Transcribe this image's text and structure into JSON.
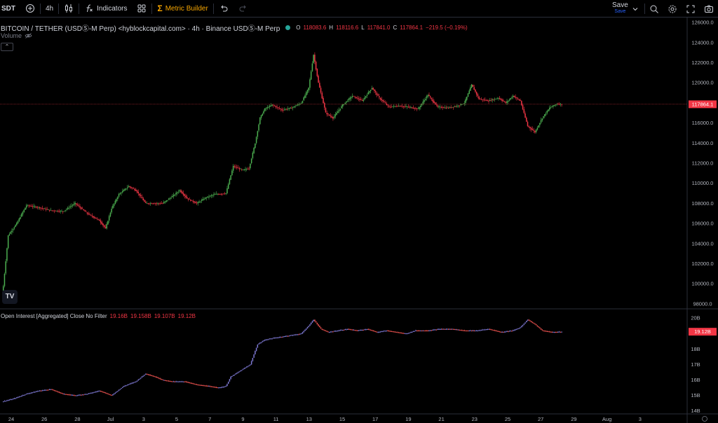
{
  "toolbar": {
    "symbol_short": "SDT",
    "interval": "4h",
    "indicators_label": "Indicators",
    "metric_builder_label": "Metric Builder",
    "save_label": "Save",
    "save_sub_label": "Save"
  },
  "legend": {
    "title": "BITCOIN / TETHER (USDⓈ-M Perp) <hyblockcapital.com> · 4h · Binance USDⓈ-M Perp",
    "o_key": "O",
    "o_val": "118083.6",
    "h_key": "H",
    "h_val": "118116.6",
    "l_key": "L",
    "l_val": "117841.0",
    "c_key": "C",
    "c_val": "117864.1",
    "change": "−219.5 (−0.19%)",
    "volume_label": "Volume",
    "collapse_glyph": "⌃"
  },
  "oi_legend": {
    "title": "Open Interest [Aggregated] Close No Filter",
    "v1": "19.16B",
    "v2": "19.158B",
    "v3": "19.107B",
    "v4": "19.12B"
  },
  "price_axis": {
    "ticks": [
      "126000.0",
      "124000.0",
      "122000.0",
      "120000.0",
      "118000.0",
      "116000.0",
      "114000.0",
      "112000.0",
      "110000.0",
      "108000.0",
      "106000.0",
      "104000.0",
      "102000.0",
      "100000.0",
      "98000.0"
    ],
    "current_label": "117864.1",
    "current_value": 117864.1
  },
  "oi_axis": {
    "ticks": [
      "20B",
      "19B",
      "18B",
      "17B",
      "16B",
      "15B",
      "14B"
    ],
    "current_label": "19.12B",
    "current_value": 19.12
  },
  "time_axis": {
    "labels": [
      "24",
      "26",
      "28",
      "Jul",
      "3",
      "5",
      "7",
      "9",
      "11",
      "13",
      "15",
      "17",
      "19",
      "21",
      "23",
      "25",
      "27",
      "29",
      "Aug",
      "3"
    ]
  },
  "colors": {
    "up": "#26a69a",
    "up_bright": "#4caf50",
    "down": "#f23645",
    "oi_up": "#7e79d4",
    "oi_down": "#ef5350",
    "price_line": "#f23645",
    "accent": "#f7a600"
  },
  "chart_data": {
    "type": "candlestick",
    "interval": "4h",
    "ylim": [
      97500,
      126500
    ],
    "price_key_points": [
      [
        0,
        98500
      ],
      [
        5,
        104800
      ],
      [
        12,
        106000
      ],
      [
        20,
        107800
      ],
      [
        30,
        107600
      ],
      [
        40,
        107300
      ],
      [
        50,
        107200
      ],
      [
        60,
        108000
      ],
      [
        70,
        107000
      ],
      [
        80,
        106300
      ],
      [
        85,
        105500
      ],
      [
        90,
        107500
      ],
      [
        96,
        108900
      ],
      [
        104,
        109700
      ],
      [
        110,
        109300
      ],
      [
        118,
        108000
      ],
      [
        125,
        108000
      ],
      [
        132,
        108000
      ],
      [
        140,
        108700
      ],
      [
        146,
        109300
      ],
      [
        152,
        108500
      ],
      [
        160,
        108000
      ],
      [
        168,
        108600
      ],
      [
        175,
        108900
      ],
      [
        184,
        109000
      ],
      [
        190,
        111700
      ],
      [
        198,
        111300
      ],
      [
        203,
        111500
      ],
      [
        208,
        114000
      ],
      [
        212,
        116500
      ],
      [
        216,
        117400
      ],
      [
        222,
        117800
      ],
      [
        230,
        117300
      ],
      [
        238,
        117500
      ],
      [
        246,
        118000
      ],
      [
        252,
        119500
      ],
      [
        256,
        122800
      ],
      [
        260,
        120000
      ],
      [
        266,
        117000
      ],
      [
        272,
        116500
      ],
      [
        280,
        117800
      ],
      [
        288,
        118700
      ],
      [
        296,
        118200
      ],
      [
        304,
        119500
      ],
      [
        310,
        118500
      ],
      [
        318,
        117600
      ],
      [
        326,
        117700
      ],
      [
        334,
        117600
      ],
      [
        342,
        117400
      ],
      [
        350,
        118800
      ],
      [
        358,
        117600
      ],
      [
        366,
        117500
      ],
      [
        374,
        117700
      ],
      [
        380,
        118000
      ],
      [
        386,
        119800
      ],
      [
        392,
        118400
      ],
      [
        400,
        118200
      ],
      [
        408,
        118500
      ],
      [
        414,
        118000
      ],
      [
        420,
        118700
      ],
      [
        426,
        118200
      ],
      [
        432,
        115700
      ],
      [
        438,
        115100
      ],
      [
        444,
        116500
      ],
      [
        450,
        117500
      ],
      [
        456,
        117900
      ],
      [
        460,
        117864
      ]
    ],
    "oi_ylim": [
      13.8,
      20.6
    ],
    "oi_key_points": [
      [
        0,
        14.6
      ],
      [
        10,
        14.8
      ],
      [
        20,
        15.1
      ],
      [
        30,
        15.3
      ],
      [
        40,
        15.4
      ],
      [
        50,
        15.1
      ],
      [
        60,
        15.0
      ],
      [
        70,
        15.1
      ],
      [
        80,
        15.3
      ],
      [
        90,
        15.0
      ],
      [
        100,
        15.6
      ],
      [
        110,
        15.9
      ],
      [
        118,
        16.4
      ],
      [
        126,
        16.2
      ],
      [
        132,
        16.0
      ],
      [
        140,
        15.9
      ],
      [
        150,
        15.9
      ],
      [
        160,
        15.7
      ],
      [
        170,
        15.6
      ],
      [
        178,
        15.5
      ],
      [
        184,
        15.6
      ],
      [
        188,
        16.2
      ],
      [
        196,
        16.6
      ],
      [
        204,
        17.0
      ],
      [
        210,
        18.3
      ],
      [
        216,
        18.6
      ],
      [
        222,
        18.7
      ],
      [
        230,
        18.8
      ],
      [
        238,
        18.9
      ],
      [
        246,
        19.0
      ],
      [
        252,
        19.5
      ],
      [
        256,
        19.9
      ],
      [
        262,
        19.3
      ],
      [
        268,
        19.1
      ],
      [
        276,
        19.2
      ],
      [
        284,
        19.3
      ],
      [
        292,
        19.2
      ],
      [
        300,
        19.3
      ],
      [
        308,
        19.1
      ],
      [
        316,
        19.2
      ],
      [
        324,
        19.1
      ],
      [
        332,
        19.0
      ],
      [
        340,
        19.2
      ],
      [
        350,
        19.2
      ],
      [
        360,
        19.3
      ],
      [
        370,
        19.3
      ],
      [
        380,
        19.2
      ],
      [
        390,
        19.2
      ],
      [
        400,
        19.3
      ],
      [
        410,
        19.1
      ],
      [
        420,
        19.2
      ],
      [
        426,
        19.4
      ],
      [
        432,
        19.9
      ],
      [
        438,
        19.6
      ],
      [
        444,
        19.2
      ],
      [
        452,
        19.1
      ],
      [
        460,
        19.12
      ]
    ]
  }
}
